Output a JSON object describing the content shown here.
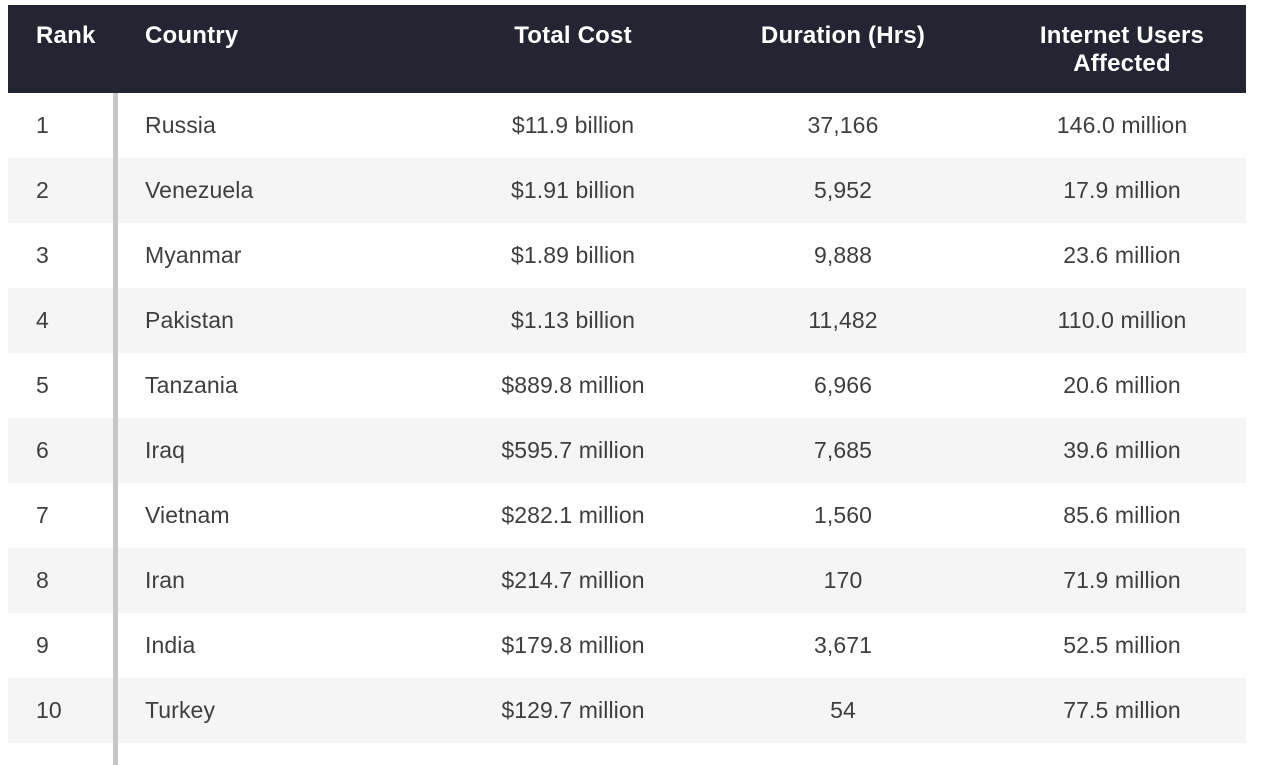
{
  "chart_data": {
    "type": "table",
    "columns": [
      "Rank",
      "Country",
      "Total Cost",
      "Duration (Hrs)",
      "Internet Users Affected"
    ],
    "rows": [
      {
        "rank": "1",
        "country": "Russia",
        "total_cost": "$11.9 billion",
        "duration_hrs": "37,166",
        "internet_users": "146.0 million"
      },
      {
        "rank": "2",
        "country": "Venezuela",
        "total_cost": "$1.91 billion",
        "duration_hrs": "5,952",
        "internet_users": "17.9 million"
      },
      {
        "rank": "3",
        "country": "Myanmar",
        "total_cost": "$1.89 billion",
        "duration_hrs": "9,888",
        "internet_users": "23.6 million"
      },
      {
        "rank": "4",
        "country": "Pakistan",
        "total_cost": "$1.13 billion",
        "duration_hrs": "11,482",
        "internet_users": "110.0 million"
      },
      {
        "rank": "5",
        "country": "Tanzania",
        "total_cost": "$889.8 million",
        "duration_hrs": "6,966",
        "internet_users": "20.6 million"
      },
      {
        "rank": "6",
        "country": "Iraq",
        "total_cost": "$595.7 million",
        "duration_hrs": "7,685",
        "internet_users": "39.6 million"
      },
      {
        "rank": "7",
        "country": "Vietnam",
        "total_cost": "$282.1 million",
        "duration_hrs": "1,560",
        "internet_users": "85.6 million"
      },
      {
        "rank": "8",
        "country": "Iran",
        "total_cost": "$214.7 million",
        "duration_hrs": "170",
        "internet_users": "71.9 million"
      },
      {
        "rank": "9",
        "country": "India",
        "total_cost": "$179.8 million",
        "duration_hrs": "3,671",
        "internet_users": "52.5 million"
      },
      {
        "rank": "10",
        "country": "Turkey",
        "total_cost": "$129.7 million",
        "duration_hrs": "54",
        "internet_users": "77.5 million"
      }
    ]
  },
  "colors": {
    "header_bg": "#232532",
    "header_text": "#ffffff",
    "row_stripe": "#f5f5f6",
    "body_text": "#3e3e3e",
    "divider": "#c7c7c9"
  }
}
